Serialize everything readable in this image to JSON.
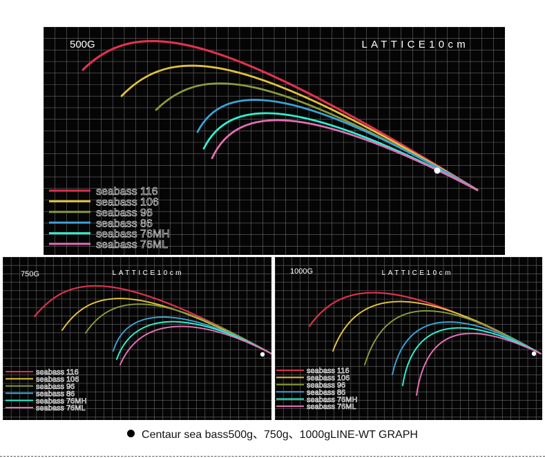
{
  "caption": "Centaur sea bass500g、750g、1000gLINE-WT GRAPH",
  "colors": {
    "background": "#050505",
    "grid": "#6a6a6a",
    "seabass_116": "#e0314f",
    "seabass_106": "#e2c23c",
    "seabass_96": "#8a9a3a",
    "seabass_86": "#3aa3d6",
    "seabass_76MH": "#2ef0d0",
    "seabass_76ML": "#e46fb4"
  },
  "chart_data": [
    {
      "type": "line",
      "weight_label": "500G",
      "lattice_label": "LATTICE10cm",
      "grid": true,
      "legend_position": "bottom-left",
      "series": [
        {
          "name": "seabass 116",
          "color": "#e0314f"
        },
        {
          "name": "seabass 106",
          "color": "#e2c23c"
        },
        {
          "name": "seabass 96",
          "color": "#8a9a3a"
        },
        {
          "name": "seabass 86",
          "color": "#3aa3d6"
        },
        {
          "name": "seabass 76MH",
          "color": "#2ef0d0"
        },
        {
          "name": "seabass 76ML",
          "color": "#e46fb4"
        }
      ]
    },
    {
      "type": "line",
      "weight_label": "750G",
      "lattice_label": "LATTICE10cm",
      "grid": true,
      "legend_position": "bottom-left",
      "series": [
        {
          "name": "seabass 116",
          "color": "#e0314f"
        },
        {
          "name": "seabass 106",
          "color": "#e2c23c"
        },
        {
          "name": "seabass 96",
          "color": "#8a9a3a"
        },
        {
          "name": "seabass 86",
          "color": "#3aa3d6"
        },
        {
          "name": "seabass 76MH",
          "color": "#2ef0d0"
        },
        {
          "name": "seabass 76ML",
          "color": "#e46fb4"
        }
      ]
    },
    {
      "type": "line",
      "weight_label": "1000G",
      "lattice_label": "LATTICE10cm",
      "grid": true,
      "legend_position": "bottom-left",
      "series": [
        {
          "name": "seabass 116",
          "color": "#e0314f"
        },
        {
          "name": "seabass 106",
          "color": "#e2c23c"
        },
        {
          "name": "seabass 96",
          "color": "#8a9a3a"
        },
        {
          "name": "seabass 86",
          "color": "#3aa3d6"
        },
        {
          "name": "seabass 76MH",
          "color": "#2ef0d0"
        },
        {
          "name": "seabass 76ML",
          "color": "#e46fb4"
        }
      ]
    }
  ]
}
